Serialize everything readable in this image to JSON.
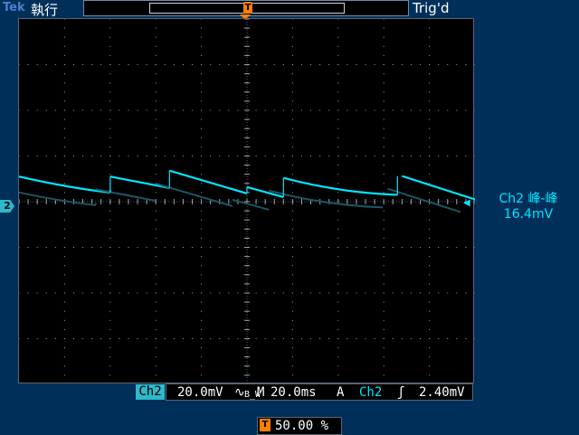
{
  "header": {
    "brand": "Tek",
    "mode": "執行",
    "trigger_status": "Trig'd"
  },
  "channel": {
    "marker": "2",
    "tag": "Ch2",
    "scale": "20.0mV",
    "bw_symbol": "∿",
    "bw_label": "B_W",
    "color": "#00e5ff"
  },
  "timebase": {
    "label": "M",
    "value": "20.0ms"
  },
  "trigger": {
    "mode": "A",
    "source": "Ch2",
    "slope_icon": "rising-edge",
    "slope_glyph": "ʃ",
    "level": "2.40mV",
    "marker": "T",
    "position": "50.00 %",
    "color": "#ff7f00"
  },
  "measurement": {
    "name": "Ch2 峰-峰",
    "value": "16.4mV"
  },
  "waveform": {
    "vertical_unit": "20.0mV per division",
    "time_unit": "20.0ms per division",
    "volts_per_div": 20.0,
    "segments": [
      [
        [
          0.0,
          0.55
        ],
        [
          1.1,
          0.35
        ],
        [
          2.0,
          0.2
        ]
      ],
      [
        [
          2.0,
          0.2
        ],
        [
          2.0,
          0.25
        ]
      ],
      [
        [
          2.0,
          0.55
        ],
        [
          3.3,
          0.3
        ]
      ],
      [
        [
          3.3,
          0.68
        ],
        [
          5.0,
          0.18
        ]
      ],
      [
        [
          5.0,
          0.32
        ],
        [
          5.8,
          0.1
        ]
      ],
      [
        [
          5.8,
          0.52
        ],
        [
          7.0,
          0.25
        ],
        [
          8.3,
          0.15
        ]
      ],
      [
        [
          8.4,
          0.56
        ],
        [
          10.0,
          0.05
        ]
      ]
    ]
  }
}
